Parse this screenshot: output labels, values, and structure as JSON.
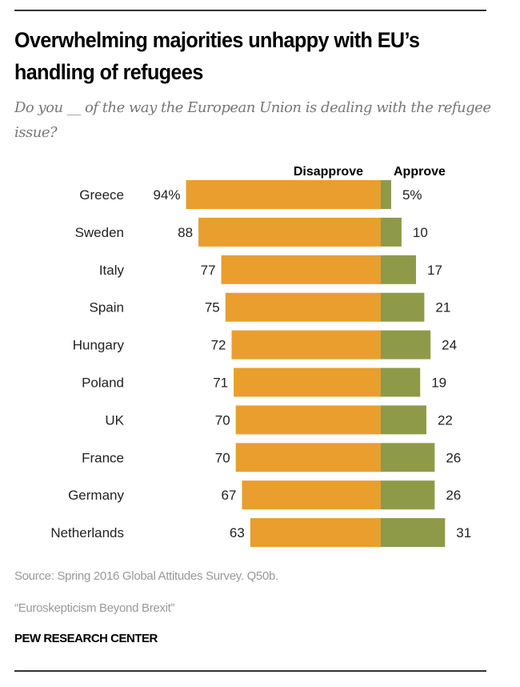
{
  "title": "Overwhelming majorities unhappy with EU’s handling of refugees",
  "subtitle": "Do you __ of the way the European Union is dealing with the refugee issue?",
  "source": "Source: Spring 2016 Global Attitudes Survey. Q50b.",
  "report": "“Euroskepticism Beyond Brexit”",
  "org": "PEW RESEARCH CENTER",
  "chart_data": {
    "type": "bar",
    "orientation": "horizontal-diverging",
    "categories": [
      "Greece",
      "Sweden",
      "Italy",
      "Spain",
      "Hungary",
      "Poland",
      "UK",
      "France",
      "Germany",
      "Netherlands"
    ],
    "series": [
      {
        "name": "Disapprove",
        "color": "#E99E2E",
        "values": [
          94,
          88,
          77,
          75,
          72,
          71,
          70,
          70,
          67,
          63
        ]
      },
      {
        "name": "Approve",
        "color": "#8E9A48",
        "values": [
          5,
          10,
          17,
          21,
          24,
          19,
          22,
          26,
          26,
          31
        ]
      }
    ],
    "first_label_suffix": "%",
    "legend": "top",
    "grid": false
  }
}
